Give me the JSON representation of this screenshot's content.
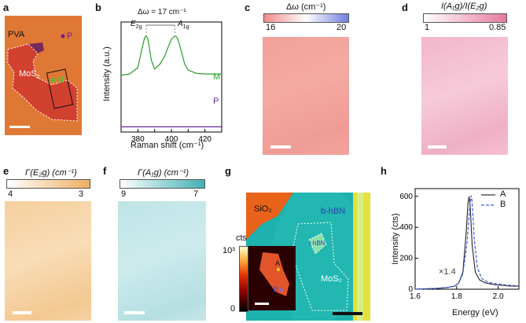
{
  "panels": {
    "a": {
      "letter": "a",
      "pva": "PVA",
      "p": "P",
      "mos2": "MoS",
      "mos2_sub": "2",
      "m": "M"
    },
    "b": {
      "letter": "b",
      "ylabel": "Intensity (a.u.)",
      "xlabel": "Raman shift (cm⁻¹)",
      "delta_label": "Δω = 17 cm⁻¹",
      "e2g": "E",
      "e2g_sub": "2g",
      "a1g": "A",
      "a1g_sub": "1g",
      "series_m": "M",
      "series_p": "P"
    },
    "c": {
      "letter": "c",
      "title": "Δω (cm⁻¹)",
      "tick_min": "16",
      "tick_max": "20"
    },
    "d": {
      "letter": "d",
      "title": "I(A₁g)/I(E₂g)",
      "tick_min": "1",
      "tick_max": "0.85"
    },
    "e": {
      "letter": "e",
      "title": "Γ(E₂g) (cm⁻¹)",
      "tick_min": "4",
      "tick_max": "3"
    },
    "f": {
      "letter": "f",
      "title": "Γ(A₁g) (cm⁻¹)",
      "tick_min": "9",
      "tick_max": "7"
    },
    "g": {
      "letter": "g",
      "sio2": "SiO₂",
      "bhbn": "b-hBN",
      "thbn": "t-hBN",
      "mos2": "MoS₂",
      "cts": "cts",
      "cts_max": "10³",
      "cts_min": "0",
      "a": "A",
      "b": "B"
    },
    "h": {
      "letter": "h",
      "ylabel": "Intensity (cts)",
      "xlabel": "Energy (eV)",
      "legend_a": "A",
      "legend_b": "B",
      "mult": "×1.4"
    }
  },
  "colors": {
    "accent_green": "#2a9d2a",
    "accent_purple": "#6a2aa0",
    "accent_blue": "#3b5bdb"
  },
  "chart_data": [
    {
      "type": "line",
      "title": "",
      "xlabel": "Raman shift (cm⁻¹)",
      "ylabel": "Intensity (a.u.)",
      "xlim": [
        370,
        430
      ],
      "xticks": [
        380,
        390,
        400,
        410,
        420
      ],
      "series": [
        {
          "name": "M",
          "x": [
            370,
            375,
            380,
            382,
            384,
            385,
            386,
            388,
            390,
            393,
            396,
            398,
            400,
            402,
            403,
            404,
            406,
            408,
            410,
            415,
            420,
            425,
            430
          ],
          "y": [
            0.38,
            0.4,
            0.5,
            0.75,
            0.97,
            1.0,
            0.95,
            0.62,
            0.48,
            0.55,
            0.68,
            0.82,
            0.95,
            1.0,
            0.99,
            0.94,
            0.75,
            0.55,
            0.46,
            0.41,
            0.4,
            0.4,
            0.4
          ]
        },
        {
          "name": "P",
          "x": [
            370,
            380,
            390,
            400,
            410,
            420,
            430
          ],
          "y": [
            0.05,
            0.05,
            0.05,
            0.05,
            0.05,
            0.05,
            0.05
          ]
        }
      ]
    },
    {
      "type": "line",
      "title": "",
      "xlabel": "Energy (eV)",
      "ylabel": "Intensity (cts)",
      "xlim": [
        1.6,
        2.1
      ],
      "ylim": [
        0,
        650
      ],
      "xticks": [
        1.6,
        1.8,
        2.0
      ],
      "yticks": [
        0,
        200,
        400,
        600
      ],
      "series": [
        {
          "name": "A",
          "x": [
            1.6,
            1.7,
            1.75,
            1.79,
            1.81,
            1.83,
            1.845,
            1.855,
            1.86,
            1.865,
            1.875,
            1.89,
            1.91,
            1.94,
            1.98,
            2.02,
            2.06,
            2.1
          ],
          "y": [
            0,
            5,
            10,
            20,
            40,
            110,
            350,
            560,
            600,
            540,
            280,
            110,
            60,
            40,
            30,
            25,
            20,
            20
          ]
        },
        {
          "name": "B",
          "x": [
            1.6,
            1.7,
            1.75,
            1.79,
            1.81,
            1.83,
            1.85,
            1.865,
            1.87,
            1.875,
            1.885,
            1.9,
            1.92,
            1.95,
            1.99,
            2.03,
            2.07,
            2.1
          ],
          "y": [
            0,
            5,
            10,
            20,
            40,
            100,
            300,
            560,
            605,
            560,
            320,
            140,
            70,
            45,
            35,
            28,
            24,
            22
          ]
        }
      ]
    }
  ]
}
